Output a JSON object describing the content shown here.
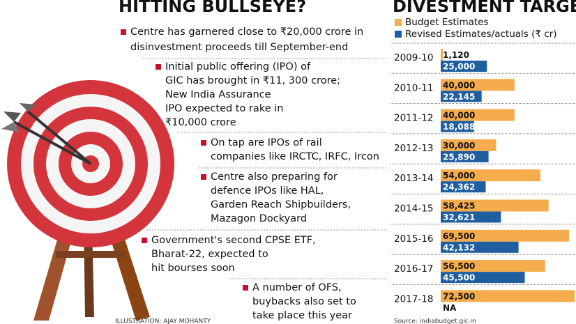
{
  "left_title": "HITTING BULLSEYE?",
  "bullets": [
    [
      "Centre has garnered close to ₹20,000 crore in",
      "disinvestment proceeds till September-end"
    ],
    [
      "Initial public offering (IPO) of",
      "GIC has brought in ₹11, 300 crore;",
      "New India Assurance",
      "IPO expected to rake in",
      "₹10,000 crore"
    ],
    [
      "On tap are IPOs of rail",
      "companies like IRCTC, IRFC, Ircon"
    ],
    [
      "Centre also preparing for",
      "defence IPOs like HAL,",
      "Garden Reach Shipbuilders,",
      "Mazagon Dockyard"
    ],
    [
      "Government's second CPSE ETF,",
      "Bharat-22, expected to",
      "hit bourses soon"
    ],
    [
      "A number of OFS,",
      "buybacks also set to",
      "take place this year"
    ]
  ],
  "credit": "ILLUSTRATION: AJAY MOHANTY",
  "chart_data": {
    "type": "bar",
    "orientation": "horizontal",
    "title": "DIVESTMENT TARGETS",
    "source": "Source: indiabudget.gic.in",
    "categories": [
      "2009-10",
      "2010-11",
      "2011-12",
      "2012-13",
      "2013-14",
      "2014-15",
      "2015-16",
      "2016-17",
      "2017-18"
    ],
    "series": [
      {
        "name": "Budget Estimates",
        "color": "#f5ac4c",
        "values": [
          1120,
          40000,
          40000,
          30000,
          54000,
          58425,
          69500,
          56500,
          72500
        ],
        "value_labels": [
          "1,120",
          "40,000",
          "40,000",
          "30,000",
          "54,000",
          "58,425",
          "69,500",
          "56,500",
          "72,500"
        ]
      },
      {
        "name": "Revised Estimates/actuals (₹ cr)",
        "color": "#1f5fa0",
        "values": [
          25000,
          22145,
          18088,
          25890,
          24362,
          32621,
          42132,
          45500,
          null
        ],
        "value_labels": [
          "25,000",
          "22,145",
          "18,088",
          "25,890",
          "24,362",
          "32,621",
          "42,132",
          "45,500",
          "NA"
        ]
      }
    ]
  }
}
